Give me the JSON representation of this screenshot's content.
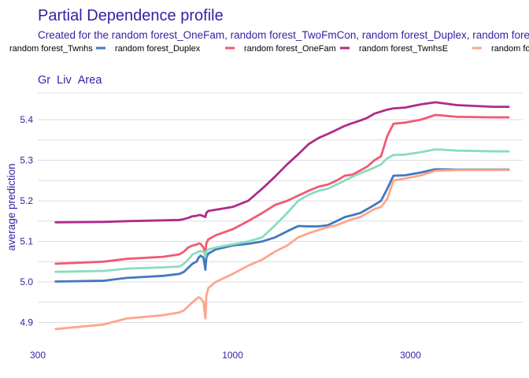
{
  "chart_data": {
    "type": "line",
    "title": "Partial Dependence profile",
    "subtitle": "Created for the random forest_OneFam, random forest_TwoFmCon, random forest_Duplex, random forest_TwnhsE, random forest_Twnhs model",
    "panel_title": "Gr_Liv_Area",
    "ylabel": "average prediction",
    "xlabel": "",
    "x_scale": "log10",
    "xlim": [
      300,
      6000
    ],
    "ylim": [
      4.87,
      5.47
    ],
    "x_ticks": [
      {
        "value": 300,
        "label": "300"
      },
      {
        "value": 1000,
        "label": "1000"
      },
      {
        "value": 3000,
        "label": "3000"
      }
    ],
    "y_ticks": [
      {
        "value": 4.9,
        "label": "4.9"
      },
      {
        "value": 5.0,
        "label": "5.0"
      },
      {
        "value": 5.1,
        "label": "5.1"
      },
      {
        "value": 5.2,
        "label": "5.2"
      },
      {
        "value": 5.3,
        "label": "5.3"
      },
      {
        "value": 5.4,
        "label": "5.4"
      }
    ],
    "grid": true,
    "legend_position": "top",
    "series": [
      {
        "name": "random forest_Duplex",
        "color": "#4378bf",
        "x": [
          335,
          450,
          520,
          650,
          720,
          740,
          760,
          780,
          800,
          810,
          820,
          835,
          845,
          850,
          860,
          900,
          1000,
          1100,
          1200,
          1300,
          1400,
          1500,
          1600,
          1700,
          1800,
          1900,
          2000,
          2100,
          2200,
          2300,
          2400,
          2500,
          2600,
          2700,
          2900,
          3200,
          3500,
          4000,
          5000,
          5500
        ],
        "y": [
          5.001,
          5.003,
          5.01,
          5.015,
          5.02,
          5.025,
          5.035,
          5.045,
          5.05,
          5.06,
          5.065,
          5.06,
          5.03,
          5.06,
          5.07,
          5.08,
          5.09,
          5.094,
          5.1,
          5.11,
          5.125,
          5.138,
          5.137,
          5.137,
          5.14,
          5.15,
          5.16,
          5.165,
          5.17,
          5.18,
          5.19,
          5.2,
          5.23,
          5.262,
          5.263,
          5.27,
          5.278,
          5.277,
          5.277,
          5.277
        ]
      },
      {
        "name": "random forest_OneFam",
        "color": "#f05a71",
        "x": [
          335,
          450,
          520,
          650,
          720,
          740,
          760,
          780,
          800,
          810,
          820,
          835,
          845,
          850,
          860,
          900,
          1000,
          1100,
          1200,
          1300,
          1400,
          1500,
          1600,
          1700,
          1800,
          1900,
          2000,
          2100,
          2200,
          2300,
          2400,
          2500,
          2600,
          2700,
          2900,
          3200,
          3500,
          4000,
          5000,
          5500
        ],
        "y": [
          5.045,
          5.05,
          5.057,
          5.062,
          5.068,
          5.075,
          5.085,
          5.09,
          5.092,
          5.095,
          5.094,
          5.085,
          5.07,
          5.095,
          5.105,
          5.115,
          5.13,
          5.15,
          5.17,
          5.19,
          5.2,
          5.213,
          5.225,
          5.235,
          5.24,
          5.25,
          5.262,
          5.265,
          5.275,
          5.285,
          5.3,
          5.31,
          5.36,
          5.39,
          5.393,
          5.4,
          5.412,
          5.407,
          5.406,
          5.406
        ]
      },
      {
        "name": "random forest_Twnhs",
        "color": "#8bdcbe",
        "x": [
          335,
          450,
          520,
          650,
          720,
          740,
          760,
          780,
          800,
          810,
          820,
          835,
          845,
          850,
          860,
          900,
          1000,
          1100,
          1200,
          1300,
          1400,
          1500,
          1600,
          1700,
          1800,
          1900,
          2000,
          2100,
          2200,
          2300,
          2400,
          2500,
          2600,
          2700,
          2900,
          3200,
          3500,
          4000,
          5000,
          5500
        ],
        "y": [
          5.025,
          5.027,
          5.033,
          5.036,
          5.038,
          5.045,
          5.055,
          5.068,
          5.072,
          5.075,
          5.076,
          5.075,
          5.062,
          5.076,
          5.08,
          5.085,
          5.093,
          5.1,
          5.11,
          5.14,
          5.17,
          5.2,
          5.215,
          5.225,
          5.23,
          5.24,
          5.25,
          5.26,
          5.268,
          5.275,
          5.282,
          5.29,
          5.305,
          5.313,
          5.314,
          5.32,
          5.327,
          5.324,
          5.322,
          5.322
        ]
      },
      {
        "name": "random forest_TwnhsE",
        "color": "#ae2c87",
        "x": [
          335,
          450,
          520,
          650,
          720,
          740,
          760,
          780,
          800,
          810,
          820,
          835,
          845,
          850,
          860,
          900,
          1000,
          1100,
          1200,
          1300,
          1400,
          1500,
          1600,
          1700,
          1800,
          1900,
          2000,
          2100,
          2200,
          2300,
          2400,
          2500,
          2600,
          2700,
          2900,
          3200,
          3500,
          4000,
          5000,
          5500
        ],
        "y": [
          5.147,
          5.148,
          5.15,
          5.152,
          5.153,
          5.155,
          5.158,
          5.162,
          5.163,
          5.165,
          5.165,
          5.162,
          5.16,
          5.17,
          5.175,
          5.178,
          5.185,
          5.2,
          5.23,
          5.26,
          5.29,
          5.315,
          5.34,
          5.355,
          5.365,
          5.375,
          5.385,
          5.392,
          5.398,
          5.405,
          5.415,
          5.42,
          5.425,
          5.428,
          5.43,
          5.438,
          5.443,
          5.436,
          5.432,
          5.432
        ]
      },
      {
        "name": "random forest_TwoFmCon",
        "color": "#ffa58c",
        "x": [
          335,
          450,
          520,
          650,
          720,
          740,
          760,
          780,
          800,
          810,
          820,
          835,
          845,
          850,
          860,
          900,
          1000,
          1100,
          1200,
          1300,
          1400,
          1500,
          1600,
          1700,
          1800,
          1900,
          2000,
          2100,
          2200,
          2300,
          2400,
          2500,
          2600,
          2700,
          2900,
          3200,
          3500,
          4000,
          5000,
          5500
        ],
        "y": [
          4.884,
          4.895,
          4.91,
          4.918,
          4.925,
          4.93,
          4.94,
          4.95,
          4.958,
          4.962,
          4.96,
          4.95,
          4.91,
          4.965,
          4.985,
          5.0,
          5.02,
          5.04,
          5.055,
          5.075,
          5.09,
          5.11,
          5.12,
          5.128,
          5.135,
          5.14,
          5.148,
          5.155,
          5.16,
          5.17,
          5.18,
          5.185,
          5.205,
          5.25,
          5.255,
          5.263,
          5.274,
          5.276,
          5.276,
          5.276
        ]
      }
    ]
  }
}
